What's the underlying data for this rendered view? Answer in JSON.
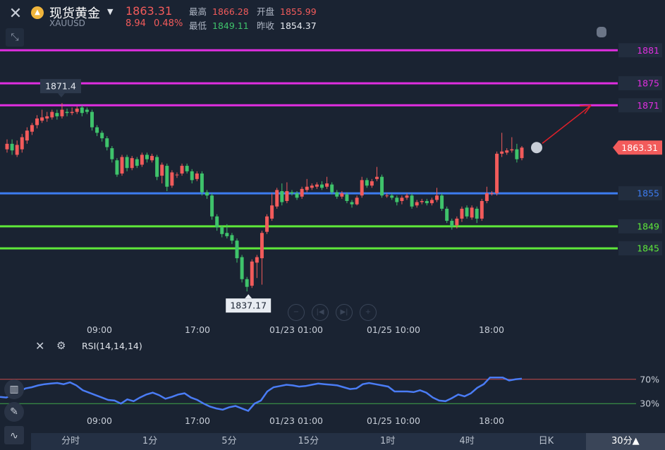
{
  "header": {
    "name": "现货黄金",
    "symbol": "XAUUSD",
    "price": "1863.31",
    "change": "8.94",
    "change_pct": "0.48%",
    "high_label": "最高",
    "high": "1866.28",
    "open_label": "开盘",
    "open": "1855.99",
    "low_label": "最低",
    "low": "1849.11",
    "prev_label": "昨收",
    "prev": "1854.37"
  },
  "chart_data": {
    "type": "candlestick",
    "ylim": [
      1833.6,
      1883.6
    ],
    "x_ticks": [
      "09:00",
      "17:00",
      "01/23 01:00",
      "01/25 10:00",
      "18:00"
    ],
    "hlines": [
      {
        "label": "1881",
        "value": 1881,
        "color": "#e02ee0"
      },
      {
        "label": "1875",
        "value": 1875,
        "color": "#e02ee0"
      },
      {
        "label": "1871",
        "value": 1871,
        "color": "#e02ee0"
      },
      {
        "label": "1855",
        "value": 1855,
        "color": "#3d7cf0"
      },
      {
        "label": "1849",
        "value": 1849,
        "color": "#5ee83a"
      },
      {
        "label": "1845",
        "value": 1845,
        "color": "#5ee83a"
      }
    ],
    "max_label": "1871.4",
    "min_label": "1837.17",
    "last_price_label": "1863.31",
    "last_price": 1863.31,
    "candles": [
      [
        1863.0,
        1864.0,
        1864.8,
        1862.4
      ],
      [
        1864.0,
        1862.8,
        1864.8,
        1862.0
      ],
      [
        1862.0,
        1863.8,
        1864.6,
        1861.6
      ],
      [
        1863.0,
        1865.2,
        1865.8,
        1862.4
      ],
      [
        1864.6,
        1866.4,
        1867.0,
        1864.0
      ],
      [
        1866.2,
        1867.4,
        1867.8,
        1865.6
      ],
      [
        1867.4,
        1868.6,
        1869.2,
        1866.8
      ],
      [
        1868.2,
        1868.8,
        1870.2,
        1867.8
      ],
      [
        1868.6,
        1869.0,
        1869.8,
        1868.0
      ],
      [
        1868.8,
        1869.8,
        1870.2,
        1868.4
      ],
      [
        1869.6,
        1869.0,
        1870.2,
        1868.4
      ],
      [
        1869.0,
        1870.2,
        1871.4,
        1868.6
      ],
      [
        1869.8,
        1869.6,
        1870.4,
        1869.0
      ],
      [
        1869.6,
        1869.8,
        1870.6,
        1869.2
      ],
      [
        1869.8,
        1870.4,
        1870.8,
        1869.4
      ],
      [
        1870.6,
        1869.6,
        1871.0,
        1869.0
      ],
      [
        1870.2,
        1869.8,
        1870.6,
        1869.4
      ],
      [
        1869.8,
        1867.0,
        1870.2,
        1866.4
      ],
      [
        1867.0,
        1866.0,
        1867.4,
        1865.4
      ],
      [
        1866.0,
        1865.0,
        1866.4,
        1864.4
      ],
      [
        1865.0,
        1863.4,
        1865.4,
        1862.8
      ],
      [
        1863.2,
        1861.2,
        1863.6,
        1860.6
      ],
      [
        1861.0,
        1858.4,
        1861.4,
        1858.0
      ],
      [
        1858.6,
        1861.6,
        1862.0,
        1858.2
      ],
      [
        1861.6,
        1859.6,
        1862.0,
        1859.0
      ],
      [
        1859.6,
        1861.4,
        1861.8,
        1859.2
      ],
      [
        1861.2,
        1860.0,
        1861.6,
        1859.6
      ],
      [
        1860.2,
        1862.0,
        1862.4,
        1859.8
      ],
      [
        1862.0,
        1861.2,
        1862.4,
        1860.6
      ],
      [
        1861.0,
        1861.8,
        1862.2,
        1860.6
      ],
      [
        1861.6,
        1858.0,
        1862.0,
        1857.4
      ],
      [
        1858.2,
        1860.2,
        1860.6,
        1856.8
      ],
      [
        1860.0,
        1856.2,
        1860.4,
        1855.4
      ],
      [
        1856.4,
        1858.8,
        1859.2,
        1856.0
      ],
      [
        1858.4,
        1858.4,
        1858.8,
        1857.8
      ],
      [
        1858.6,
        1860.0,
        1860.4,
        1858.2
      ],
      [
        1860.0,
        1859.0,
        1860.4,
        1858.6
      ],
      [
        1859.0,
        1857.4,
        1859.4,
        1856.8
      ],
      [
        1857.6,
        1858.6,
        1859.0,
        1857.2
      ],
      [
        1858.6,
        1855.2,
        1859.0,
        1854.6
      ],
      [
        1855.2,
        1854.6,
        1855.6,
        1854.0
      ],
      [
        1854.6,
        1850.8,
        1855.0,
        1850.2
      ],
      [
        1850.8,
        1848.8,
        1851.2,
        1848.2
      ],
      [
        1848.8,
        1847.6,
        1849.2,
        1847.0
      ],
      [
        1847.8,
        1847.2,
        1849.4,
        1846.8
      ],
      [
        1847.4,
        1846.4,
        1847.8,
        1845.8
      ],
      [
        1846.4,
        1843.2,
        1846.8,
        1842.4
      ],
      [
        1843.4,
        1839.4,
        1843.8,
        1838.8
      ],
      [
        1839.4,
        1838.0,
        1839.8,
        1837.17
      ],
      [
        1838.2,
        1842.6,
        1843.0,
        1837.8
      ],
      [
        1842.4,
        1843.4,
        1843.8,
        1839.6
      ],
      [
        1843.2,
        1847.8,
        1848.2,
        1838.4
      ],
      [
        1848.0,
        1850.8,
        1851.2,
        1847.6
      ],
      [
        1850.4,
        1852.8,
        1855.0,
        1850.0
      ],
      [
        1852.6,
        1855.6,
        1856.0,
        1852.2
      ],
      [
        1855.4,
        1853.4,
        1856.8,
        1852.8
      ],
      [
        1853.6,
        1855.4,
        1857.0,
        1853.2
      ],
      [
        1855.2,
        1855.0,
        1855.6,
        1854.6
      ],
      [
        1855.0,
        1854.2,
        1855.4,
        1853.8
      ],
      [
        1854.4,
        1855.8,
        1856.2,
        1854.0
      ],
      [
        1855.6,
        1856.2,
        1857.6,
        1855.2
      ],
      [
        1856.0,
        1856.4,
        1856.8,
        1855.6
      ],
      [
        1856.2,
        1856.6,
        1857.0,
        1855.8
      ],
      [
        1856.6,
        1856.0,
        1857.2,
        1855.6
      ],
      [
        1856.2,
        1856.8,
        1858.0,
        1855.8
      ],
      [
        1856.6,
        1855.2,
        1857.0,
        1854.8
      ],
      [
        1855.2,
        1854.4,
        1855.6,
        1854.0
      ],
      [
        1854.4,
        1855.0,
        1855.4,
        1854.0
      ],
      [
        1854.8,
        1853.6,
        1855.2,
        1853.2
      ],
      [
        1853.4,
        1853.0,
        1853.8,
        1852.4
      ],
      [
        1853.0,
        1854.2,
        1854.6,
        1852.8
      ],
      [
        1854.6,
        1857.4,
        1858.0,
        1854.2
      ],
      [
        1857.4,
        1856.4,
        1857.8,
        1856.0
      ],
      [
        1856.4,
        1857.2,
        1857.6,
        1856.0
      ],
      [
        1857.6,
        1858.0,
        1859.8,
        1857.2
      ],
      [
        1858.0,
        1854.6,
        1858.4,
        1854.2
      ],
      [
        1854.6,
        1854.6,
        1855.0,
        1854.2
      ],
      [
        1854.6,
        1854.2,
        1855.0,
        1853.8
      ],
      [
        1854.2,
        1853.4,
        1854.6,
        1852.8
      ],
      [
        1853.6,
        1854.2,
        1854.6,
        1853.0
      ],
      [
        1854.2,
        1854.6,
        1855.0,
        1853.8
      ],
      [
        1854.6,
        1852.6,
        1855.0,
        1852.2
      ],
      [
        1852.8,
        1853.4,
        1853.8,
        1852.4
      ],
      [
        1853.4,
        1853.6,
        1854.0,
        1853.0
      ],
      [
        1853.6,
        1853.2,
        1854.0,
        1852.8
      ],
      [
        1853.2,
        1853.8,
        1854.2,
        1852.8
      ],
      [
        1853.8,
        1854.6,
        1856.0,
        1853.4
      ],
      [
        1854.6,
        1852.2,
        1855.0,
        1851.8
      ],
      [
        1852.2,
        1850.0,
        1852.6,
        1849.6
      ],
      [
        1850.0,
        1849.0,
        1850.4,
        1848.4
      ],
      [
        1849.2,
        1850.4,
        1850.8,
        1848.6
      ],
      [
        1850.4,
        1852.2,
        1852.6,
        1849.8
      ],
      [
        1852.4,
        1850.8,
        1852.8,
        1850.4
      ],
      [
        1850.6,
        1852.4,
        1852.8,
        1850.2
      ],
      [
        1852.2,
        1850.4,
        1852.6,
        1849.6
      ],
      [
        1850.4,
        1853.6,
        1854.0,
        1850.0
      ],
      [
        1853.6,
        1855.0,
        1856.2,
        1853.2
      ],
      [
        1855.0,
        1855.0,
        1855.4,
        1854.6
      ],
      [
        1855.0,
        1862.2,
        1862.6,
        1854.6
      ],
      [
        1862.2,
        1862.6,
        1866.0,
        1861.6
      ],
      [
        1862.4,
        1862.8,
        1863.2,
        1862.0
      ],
      [
        1862.8,
        1863.0,
        1865.2,
        1862.4
      ],
      [
        1863.0,
        1861.2,
        1864.0,
        1860.6
      ],
      [
        1861.4,
        1863.31,
        1863.6,
        1861.0
      ]
    ],
    "rsi": {
      "label": "RSI(14,14,14)",
      "ylim": [
        0,
        100
      ],
      "levels": [
        70,
        30
      ],
      "level_labels": [
        "70%",
        "30%"
      ],
      "x_ticks": [
        "09:00",
        "17:00",
        "01/23 01:00",
        "01/25 10:00",
        "18:00"
      ],
      "values": [
        41,
        40,
        45,
        50,
        55,
        57,
        60,
        62,
        63,
        64,
        62,
        65,
        60,
        52,
        48,
        44,
        40,
        36,
        35,
        30,
        37,
        34,
        40,
        45,
        48,
        44,
        38,
        41,
        45,
        47,
        40,
        36,
        30,
        25,
        22,
        20,
        24,
        26,
        22,
        18,
        30,
        35,
        50,
        57,
        59,
        61,
        60,
        58,
        59,
        61,
        63,
        62,
        61,
        60,
        57,
        54,
        55,
        62,
        64,
        62,
        60,
        58,
        50,
        50,
        50,
        49,
        52,
        48,
        40,
        35,
        34,
        39,
        45,
        42,
        47,
        56,
        62,
        73,
        73,
        73,
        68,
        70,
        71
      ]
    }
  },
  "periods": [
    "分时",
    "1分",
    "5分",
    "15分",
    "1时",
    "4时",
    "日K",
    "30分▲"
  ],
  "active_period": "30分▲"
}
